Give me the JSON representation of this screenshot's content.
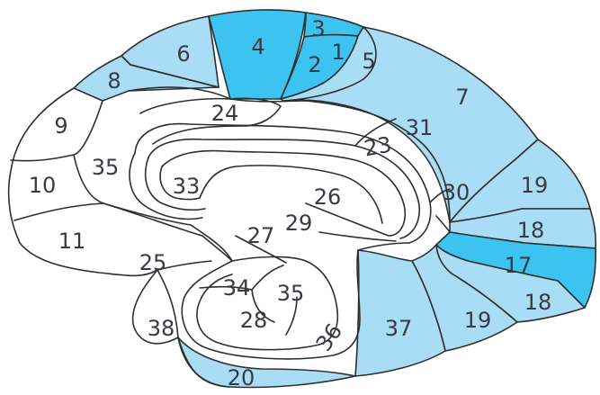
{
  "colors": {
    "light": "#a8ddf5",
    "dark": "#3cc3ef",
    "none": "#ffffff"
  },
  "areas": [
    {
      "id": "1",
      "label": "1",
      "shade": "dark"
    },
    {
      "id": "2",
      "label": "2",
      "shade": "dark"
    },
    {
      "id": "3",
      "label": "3",
      "shade": "dark"
    },
    {
      "id": "4",
      "label": "4",
      "shade": "dark"
    },
    {
      "id": "5",
      "label": "5",
      "shade": "light"
    },
    {
      "id": "6",
      "label": "6",
      "shade": "light"
    },
    {
      "id": "7",
      "label": "7",
      "shade": "light"
    },
    {
      "id": "8",
      "label": "8",
      "shade": "light"
    },
    {
      "id": "9",
      "label": "9",
      "shade": "none"
    },
    {
      "id": "10",
      "label": "10",
      "shade": "none"
    },
    {
      "id": "11",
      "label": "11",
      "shade": "none"
    },
    {
      "id": "17",
      "label": "17",
      "shade": "dark"
    },
    {
      "id": "18-upper",
      "label": "18",
      "shade": "light"
    },
    {
      "id": "18-lower",
      "label": "18",
      "shade": "light"
    },
    {
      "id": "19-upper",
      "label": "19",
      "shade": "light"
    },
    {
      "id": "19-lower",
      "label": "19",
      "shade": "light"
    },
    {
      "id": "20",
      "label": "20",
      "shade": "light"
    },
    {
      "id": "23",
      "label": "23",
      "shade": "none"
    },
    {
      "id": "24",
      "label": "24",
      "shade": "none"
    },
    {
      "id": "25",
      "label": "25",
      "shade": "none"
    },
    {
      "id": "26",
      "label": "26",
      "shade": "none"
    },
    {
      "id": "27",
      "label": "27",
      "shade": "none"
    },
    {
      "id": "28",
      "label": "28",
      "shade": "none"
    },
    {
      "id": "29",
      "label": "29",
      "shade": "none"
    },
    {
      "id": "30",
      "label": "30",
      "shade": "none"
    },
    {
      "id": "31",
      "label": "31",
      "shade": "none"
    },
    {
      "id": "33",
      "label": "33",
      "shade": "none"
    },
    {
      "id": "34",
      "label": "34",
      "shade": "none"
    },
    {
      "id": "35-upper",
      "label": "35",
      "shade": "none"
    },
    {
      "id": "35-lower",
      "label": "35",
      "shade": "none"
    },
    {
      "id": "36",
      "label": "36",
      "shade": "none"
    },
    {
      "id": "37",
      "label": "37",
      "shade": "light"
    },
    {
      "id": "38",
      "label": "38",
      "shade": "none"
    }
  ]
}
